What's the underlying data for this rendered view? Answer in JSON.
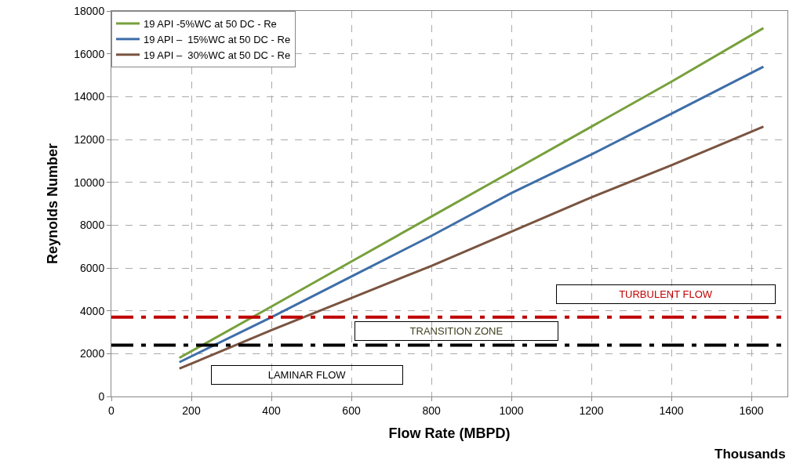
{
  "chart_data": {
    "type": "line",
    "xlabel": "Flow Rate (MBPD)",
    "ylabel": "Reynolds Number",
    "x": [
      170,
      400,
      600,
      800,
      1000,
      1200,
      1400,
      1630
    ],
    "series": [
      {
        "name": "19 API -5%WC at 50 DC - Re",
        "color": "#77a03c",
        "values": [
          1800,
          4200,
          6300,
          8400,
          10500,
          12600,
          14700,
          17200
        ]
      },
      {
        "name": "19 API –  15%WC at 50 DC - Re",
        "color": "#3e6ea8",
        "values": [
          1600,
          3700,
          5600,
          7500,
          9500,
          11300,
          13200,
          15400
        ]
      },
      {
        "name": "19 API –  30%WC at 50 DC - Re",
        "color": "#7a5440",
        "values": [
          1300,
          3100,
          4600,
          6100,
          7700,
          9300,
          10800,
          12600
        ]
      }
    ],
    "ref_lines": [
      {
        "axis": "y",
        "value": 3700,
        "color": "#c00000",
        "line_style": "dashed"
      },
      {
        "axis": "y",
        "value": 2400,
        "color": "#000000",
        "line_style": "dashed"
      }
    ],
    "annotations": [
      "TURBULENT FLOW",
      "TRANSITION ZONE",
      "LAMINAR FLOW",
      "Thousands"
    ],
    "xlim": [
      0,
      1690
    ],
    "ylim": [
      0,
      18000
    ],
    "xticks": [
      0,
      200,
      400,
      600,
      800,
      1000,
      1200,
      1400,
      1600
    ],
    "yticks": [
      0,
      2000,
      4000,
      6000,
      8000,
      10000,
      12000,
      14000,
      16000,
      18000
    ],
    "grid": true,
    "legend": "top left",
    "line_style": "solid",
    "marker": "none"
  }
}
